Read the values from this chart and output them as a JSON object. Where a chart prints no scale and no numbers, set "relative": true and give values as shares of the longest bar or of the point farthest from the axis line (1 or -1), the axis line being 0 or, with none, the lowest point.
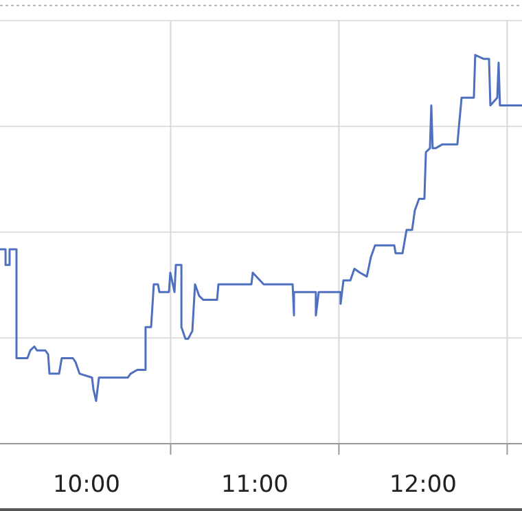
{
  "chart_data": {
    "type": "line",
    "relative": true,
    "grid": true,
    "marker": "none",
    "line_style": "solid",
    "xlim": [
      9.486,
      12.588
    ],
    "xticks": [
      {
        "value": 10,
        "label": "10:00"
      },
      {
        "value": 11,
        "label": "11:00"
      },
      {
        "value": 12,
        "label": "12:00"
      },
      {
        "value": 10.5,
        "label": null
      },
      {
        "value": 11.5,
        "label": null
      },
      {
        "value": 12.5,
        "label": null
      }
    ],
    "series": [
      {
        "color": "#4f6fbf",
        "x": [
          9.486,
          9.519,
          9.519,
          9.543,
          9.543,
          9.584,
          9.584,
          9.649,
          9.666,
          9.69,
          9.706,
          9.755,
          9.772,
          9.78,
          9.837,
          9.853,
          9.919,
          9.935,
          9.959,
          10.033,
          10.041,
          10.057,
          10.074,
          10.245,
          10.262,
          10.302,
          10.351,
          10.351,
          10.384,
          10.4,
          10.425,
          10.433,
          10.49,
          10.498,
          10.523,
          10.531,
          10.564,
          10.564,
          10.588,
          10.604,
          10.629,
          10.645,
          10.67,
          10.694,
          10.776,
          10.784,
          10.817,
          10.874,
          10.898,
          10.98,
          10.988,
          11.053,
          11.094,
          11.176,
          11.184,
          11.225,
          11.233,
          11.233,
          11.363,
          11.363,
          11.38,
          11.51,
          11.51,
          11.527,
          11.568,
          11.592,
          11.625,
          11.666,
          11.69,
          11.715,
          11.747,
          11.829,
          11.837,
          11.878,
          11.902,
          11.935,
          11.951,
          11.976,
          12.008,
          12.017,
          12.041,
          12.049,
          12.057,
          12.074,
          12.115,
          12.204,
          12.212,
          12.229,
          12.302,
          12.31,
          12.359,
          12.392,
          12.4,
          12.441,
          12.449,
          12.457,
          12.588
        ],
        "values": [
          0.5,
          0.5,
          0.46,
          0.46,
          0.5,
          0.5,
          0.22,
          0.22,
          0.24,
          0.25,
          0.24,
          0.24,
          0.23,
          0.18,
          0.18,
          0.22,
          0.22,
          0.21,
          0.18,
          0.17,
          0.14,
          0.11,
          0.17,
          0.17,
          0.18,
          0.19,
          0.19,
          0.3,
          0.3,
          0.41,
          0.41,
          0.39,
          0.39,
          0.44,
          0.39,
          0.46,
          0.46,
          0.3,
          0.27,
          0.27,
          0.29,
          0.41,
          0.38,
          0.37,
          0.37,
          0.41,
          0.41,
          0.41,
          0.41,
          0.41,
          0.44,
          0.41,
          0.41,
          0.41,
          0.41,
          0.41,
          0.33,
          0.39,
          0.39,
          0.33,
          0.39,
          0.39,
          0.36,
          0.42,
          0.42,
          0.45,
          0.44,
          0.43,
          0.48,
          0.51,
          0.51,
          0.51,
          0.49,
          0.49,
          0.55,
          0.55,
          0.6,
          0.63,
          0.63,
          0.75,
          0.76,
          0.87,
          0.76,
          0.76,
          0.77,
          0.77,
          0.81,
          0.89,
          0.89,
          1.0,
          0.99,
          0.99,
          0.87,
          0.89,
          0.98,
          0.87,
          0.87
        ]
      }
    ]
  }
}
